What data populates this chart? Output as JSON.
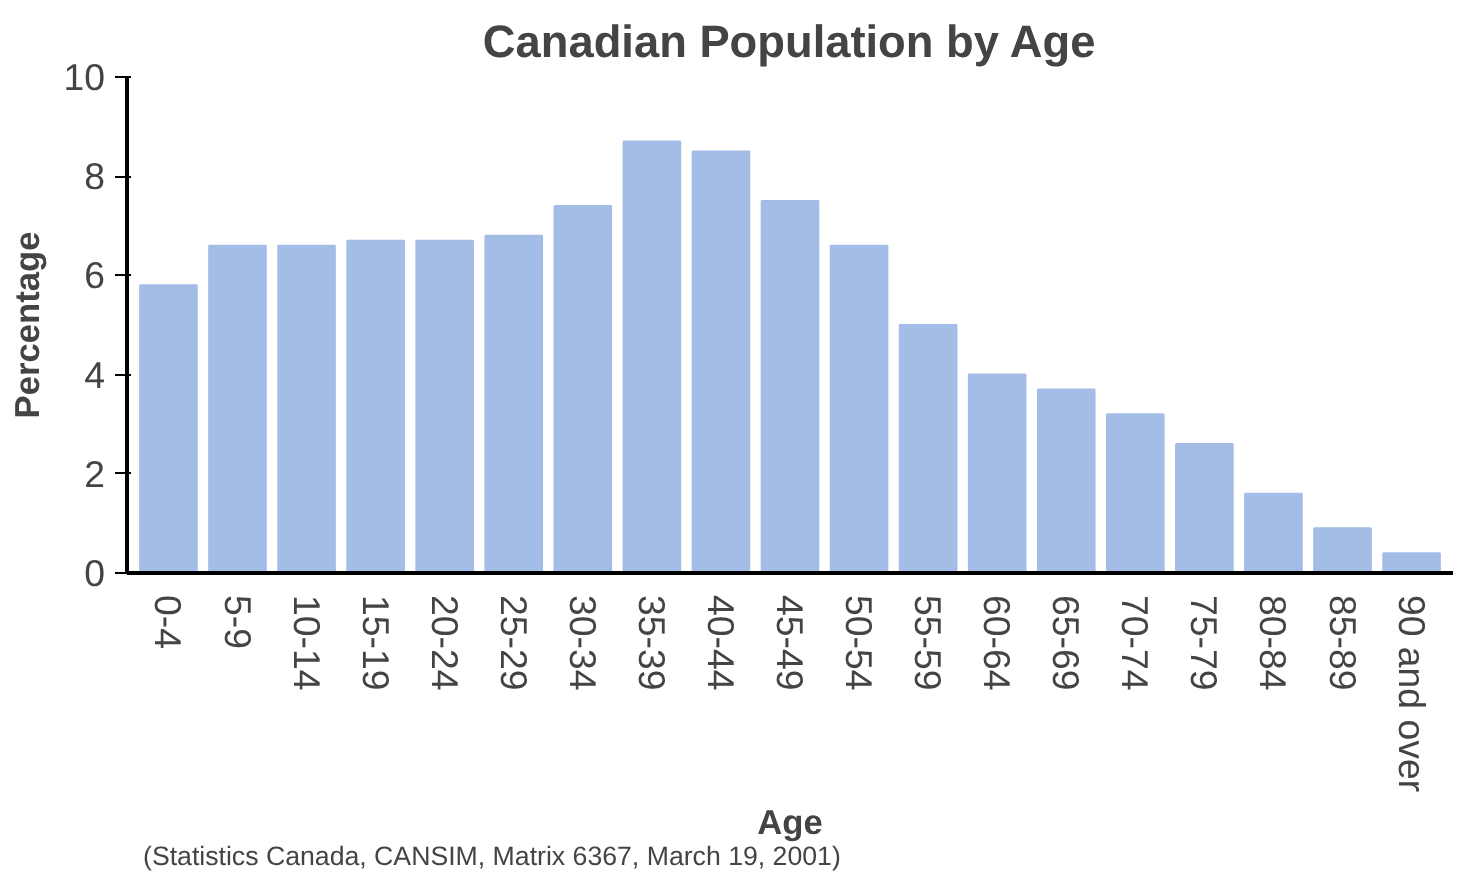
{
  "chart_data": {
    "type": "bar",
    "title": "Canadian Population by Age",
    "xlabel": "Age",
    "ylabel": "Percentage",
    "categories": [
      "0-4",
      "5-9",
      "10-14",
      "15-19",
      "20-24",
      "25-29",
      "30-34",
      "35-39",
      "40-44",
      "45-49",
      "50-54",
      "55-59",
      "60-64",
      "65-69",
      "70-74",
      "75-79",
      "80-84",
      "85-89",
      "90 and over"
    ],
    "values": [
      5.8,
      6.6,
      6.6,
      6.7,
      6.7,
      6.8,
      7.4,
      8.7,
      8.5,
      7.5,
      6.6,
      5.0,
      4.0,
      3.7,
      3.2,
      2.6,
      1.6,
      0.9,
      0.4
    ],
    "color": "#a3bde6",
    "ylim": [
      0,
      10
    ],
    "yticks": [
      0,
      2,
      4,
      6,
      8,
      10
    ],
    "grid": false,
    "annotations": [
      "(Statistics Canada, CANSIM, Matrix 6367, March 19, 2001)"
    ]
  }
}
